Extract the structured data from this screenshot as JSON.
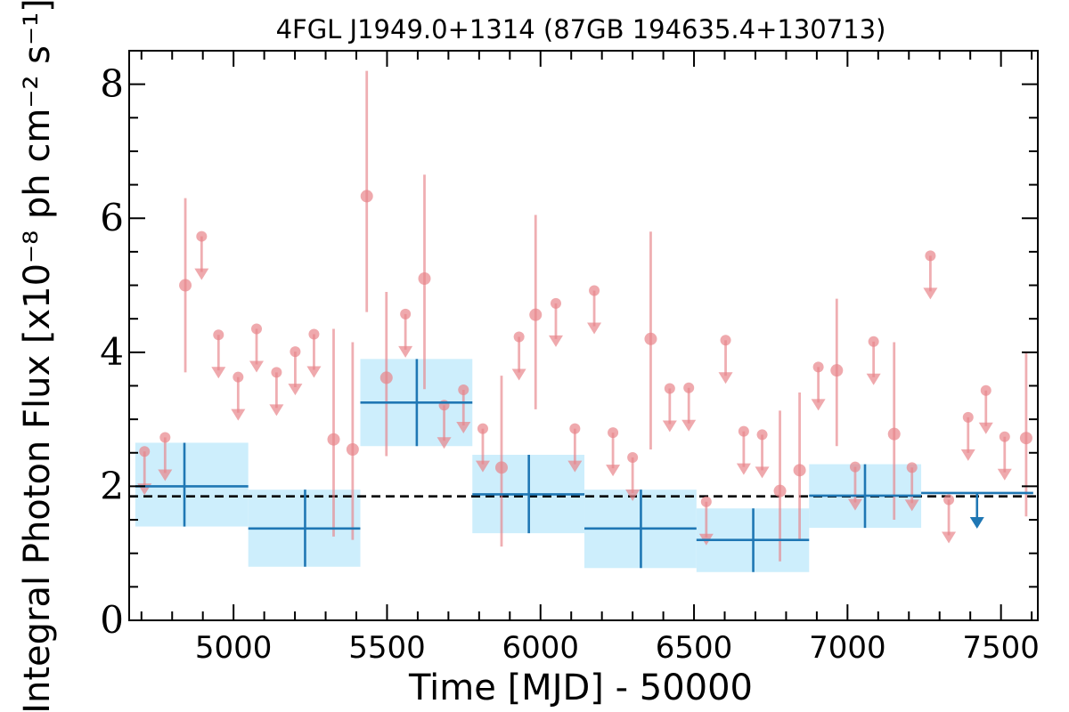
{
  "chart_data": {
    "type": "scatter",
    "title": "4FGL J1949.0+1314 (87GB 194635.4+130713)",
    "xlabel": "Time [MJD] - 50000",
    "ylabel": "Integral Photon Flux [x10⁻⁸ ph cm⁻² s⁻¹]",
    "xlim": [
      4660,
      7620
    ],
    "ylim": [
      0,
      8.5
    ],
    "x_ticks": [
      5000,
      5500,
      6000,
      6500,
      7000,
      7500
    ],
    "y_ticks": [
      0,
      2,
      4,
      6,
      8
    ],
    "reference_line": {
      "value": 1.85,
      "style": "dashed",
      "color": "#000000"
    },
    "colors": {
      "short_bins": "#e8848a",
      "long_bins": "#1f77b4",
      "long_bin_band": "#cdeefc"
    },
    "series": [
      {
        "detections": [
          {
            "x": 4843,
            "y": 5.0,
            "lo": 3.7,
            "hi": 6.3
          },
          {
            "x": 5326,
            "y": 2.7,
            "lo": 1.25,
            "hi": 4.35
          },
          {
            "x": 5388,
            "y": 2.55,
            "lo": 1.2,
            "hi": 4.15
          },
          {
            "x": 5434,
            "y": 6.33,
            "lo": 4.6,
            "hi": 8.2
          },
          {
            "x": 5498,
            "y": 3.62,
            "lo": 2.45,
            "hi": 4.9
          },
          {
            "x": 5622,
            "y": 5.1,
            "lo": 3.45,
            "hi": 6.65
          },
          {
            "x": 5873,
            "y": 2.28,
            "lo": 1.1,
            "hi": 3.65
          },
          {
            "x": 5984,
            "y": 4.56,
            "lo": 3.15,
            "hi": 6.05
          },
          {
            "x": 6359,
            "y": 4.2,
            "lo": 2.55,
            "hi": 5.8
          },
          {
            "x": 6780,
            "y": 1.93,
            "lo": 0.88,
            "hi": 3.13
          },
          {
            "x": 6844,
            "y": 2.24,
            "lo": 1.2,
            "hi": 3.4
          },
          {
            "x": 6965,
            "y": 3.73,
            "lo": 2.6,
            "hi": 4.8
          },
          {
            "x": 7152,
            "y": 2.78,
            "lo": 1.5,
            "hi": 4.15
          },
          {
            "x": 7582,
            "y": 2.72,
            "lo": 1.55,
            "hi": 4.0
          }
        ],
        "upper_limits": [
          {
            "x": 4710,
            "y": 2.52
          },
          {
            "x": 4777,
            "y": 2.73
          },
          {
            "x": 4896,
            "y": 5.73
          },
          {
            "x": 4951,
            "y": 4.26
          },
          {
            "x": 5015,
            "y": 3.63
          },
          {
            "x": 5075,
            "y": 4.35
          },
          {
            "x": 5140,
            "y": 3.7
          },
          {
            "x": 5201,
            "y": 4.01
          },
          {
            "x": 5262,
            "y": 4.27
          },
          {
            "x": 5560,
            "y": 4.57
          },
          {
            "x": 5686,
            "y": 3.21
          },
          {
            "x": 5749,
            "y": 3.44
          },
          {
            "x": 5812,
            "y": 2.86
          },
          {
            "x": 5930,
            "y": 4.23
          },
          {
            "x": 6050,
            "y": 4.73
          },
          {
            "x": 6112,
            "y": 2.86
          },
          {
            "x": 6175,
            "y": 4.92
          },
          {
            "x": 6236,
            "y": 2.8
          },
          {
            "x": 6300,
            "y": 2.43
          },
          {
            "x": 6421,
            "y": 3.46
          },
          {
            "x": 6483,
            "y": 3.47
          },
          {
            "x": 6540,
            "y": 1.77
          },
          {
            "x": 6603,
            "y": 4.18
          },
          {
            "x": 6662,
            "y": 2.82
          },
          {
            "x": 6722,
            "y": 2.77
          },
          {
            "x": 6905,
            "y": 3.78
          },
          {
            "x": 7025,
            "y": 2.29
          },
          {
            "x": 7085,
            "y": 4.16
          },
          {
            "x": 7210,
            "y": 2.28
          },
          {
            "x": 7270,
            "y": 5.44
          },
          {
            "x": 7330,
            "y": 1.8
          },
          {
            "x": 7393,
            "y": 3.03
          },
          {
            "x": 7451,
            "y": 3.43
          },
          {
            "x": 7512,
            "y": 2.74
          }
        ]
      },
      {
        "detections": [
          {
            "x0": 4680,
            "x1": 5048,
            "xc": 4840,
            "y": 2.0,
            "lo": 1.4,
            "hi": 2.65
          },
          {
            "x0": 5048,
            "x1": 5413,
            "xc": 5233,
            "y": 1.37,
            "lo": 0.8,
            "hi": 1.95
          },
          {
            "x0": 5413,
            "x1": 5778,
            "xc": 5597,
            "y": 3.25,
            "lo": 2.6,
            "hi": 3.9
          },
          {
            "x0": 5778,
            "x1": 6143,
            "xc": 5962,
            "y": 1.88,
            "lo": 1.3,
            "hi": 2.47
          },
          {
            "x0": 6143,
            "x1": 6508,
            "xc": 6327,
            "y": 1.37,
            "lo": 0.78,
            "hi": 1.95
          },
          {
            "x0": 6508,
            "x1": 6875,
            "xc": 6693,
            "y": 1.2,
            "lo": 0.72,
            "hi": 1.67
          },
          {
            "x0": 6875,
            "x1": 7240,
            "xc": 7057,
            "y": 1.86,
            "lo": 1.38,
            "hi": 2.33
          }
        ],
        "upper_limits": [
          {
            "x0": 7240,
            "x1": 7605,
            "xc": 7422,
            "y": 1.9
          }
        ]
      }
    ]
  }
}
